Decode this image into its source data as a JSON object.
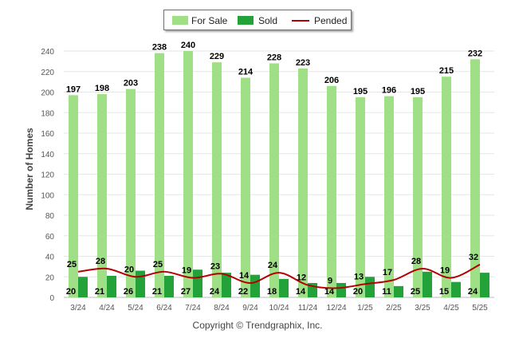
{
  "chart_data": {
    "type": "bar",
    "categories": [
      "3/24",
      "4/24",
      "5/24",
      "6/24",
      "7/24",
      "8/24",
      "9/24",
      "10/24",
      "11/24",
      "12/24",
      "1/25",
      "2/25",
      "3/25",
      "4/25",
      "5/25"
    ],
    "series": [
      {
        "name": "For Sale",
        "kind": "bar",
        "color": "#9fdf85",
        "values": [
          197,
          198,
          203,
          238,
          240,
          229,
          214,
          228,
          223,
          206,
          195,
          196,
          195,
          215,
          232
        ]
      },
      {
        "name": "Sold",
        "kind": "bar",
        "color": "#23a23a",
        "values": [
          20,
          21,
          26,
          21,
          27,
          24,
          22,
          18,
          14,
          14,
          20,
          11,
          25,
          15,
          24
        ]
      },
      {
        "name": "Pended",
        "kind": "line",
        "color": "#b30000",
        "values": [
          25,
          28,
          20,
          25,
          19,
          23,
          14,
          24,
          12,
          9,
          13,
          17,
          28,
          19,
          32
        ]
      }
    ],
    "ylabel": "Number of Homes",
    "ylim": [
      0,
      240
    ],
    "yticks": [
      0,
      20,
      40,
      60,
      80,
      100,
      120,
      140,
      160,
      180,
      200,
      220,
      240
    ],
    "grid": true,
    "legend": "top-center"
  },
  "footer": {
    "copyright": "Copyright © Trendgraphix, Inc."
  }
}
